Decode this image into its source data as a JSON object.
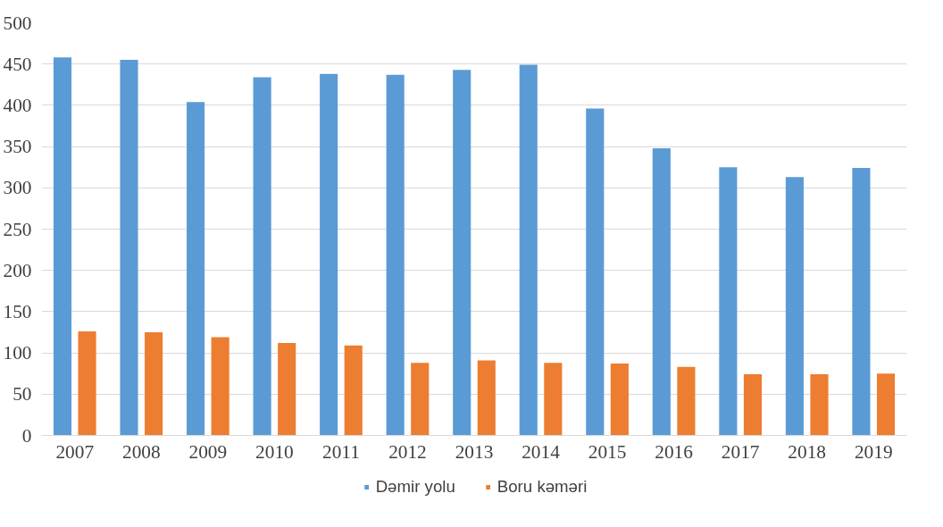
{
  "chart_data": {
    "type": "bar",
    "categories": [
      "2007",
      "2008",
      "2009",
      "2010",
      "2011",
      "2012",
      "2013",
      "2014",
      "2015",
      "2016",
      "2017",
      "2018",
      "2019"
    ],
    "series": [
      {
        "name": "Dəmir yolu",
        "color": "#5b9bd5",
        "values": [
          458,
          455,
          404,
          434,
          438,
          437,
          443,
          449,
          396,
          348,
          325,
          313,
          324
        ]
      },
      {
        "name": "Boru kəməri",
        "color": "#ed7d31",
        "values": [
          126,
          125,
          119,
          112,
          109,
          88,
          91,
          88,
          87,
          83,
          74,
          74,
          75
        ]
      }
    ],
    "ylim": [
      0,
      500
    ],
    "yticks": [
      0,
      50,
      100,
      150,
      200,
      250,
      300,
      350,
      400,
      450,
      500
    ],
    "grid": "y",
    "legend": "bottom"
  }
}
